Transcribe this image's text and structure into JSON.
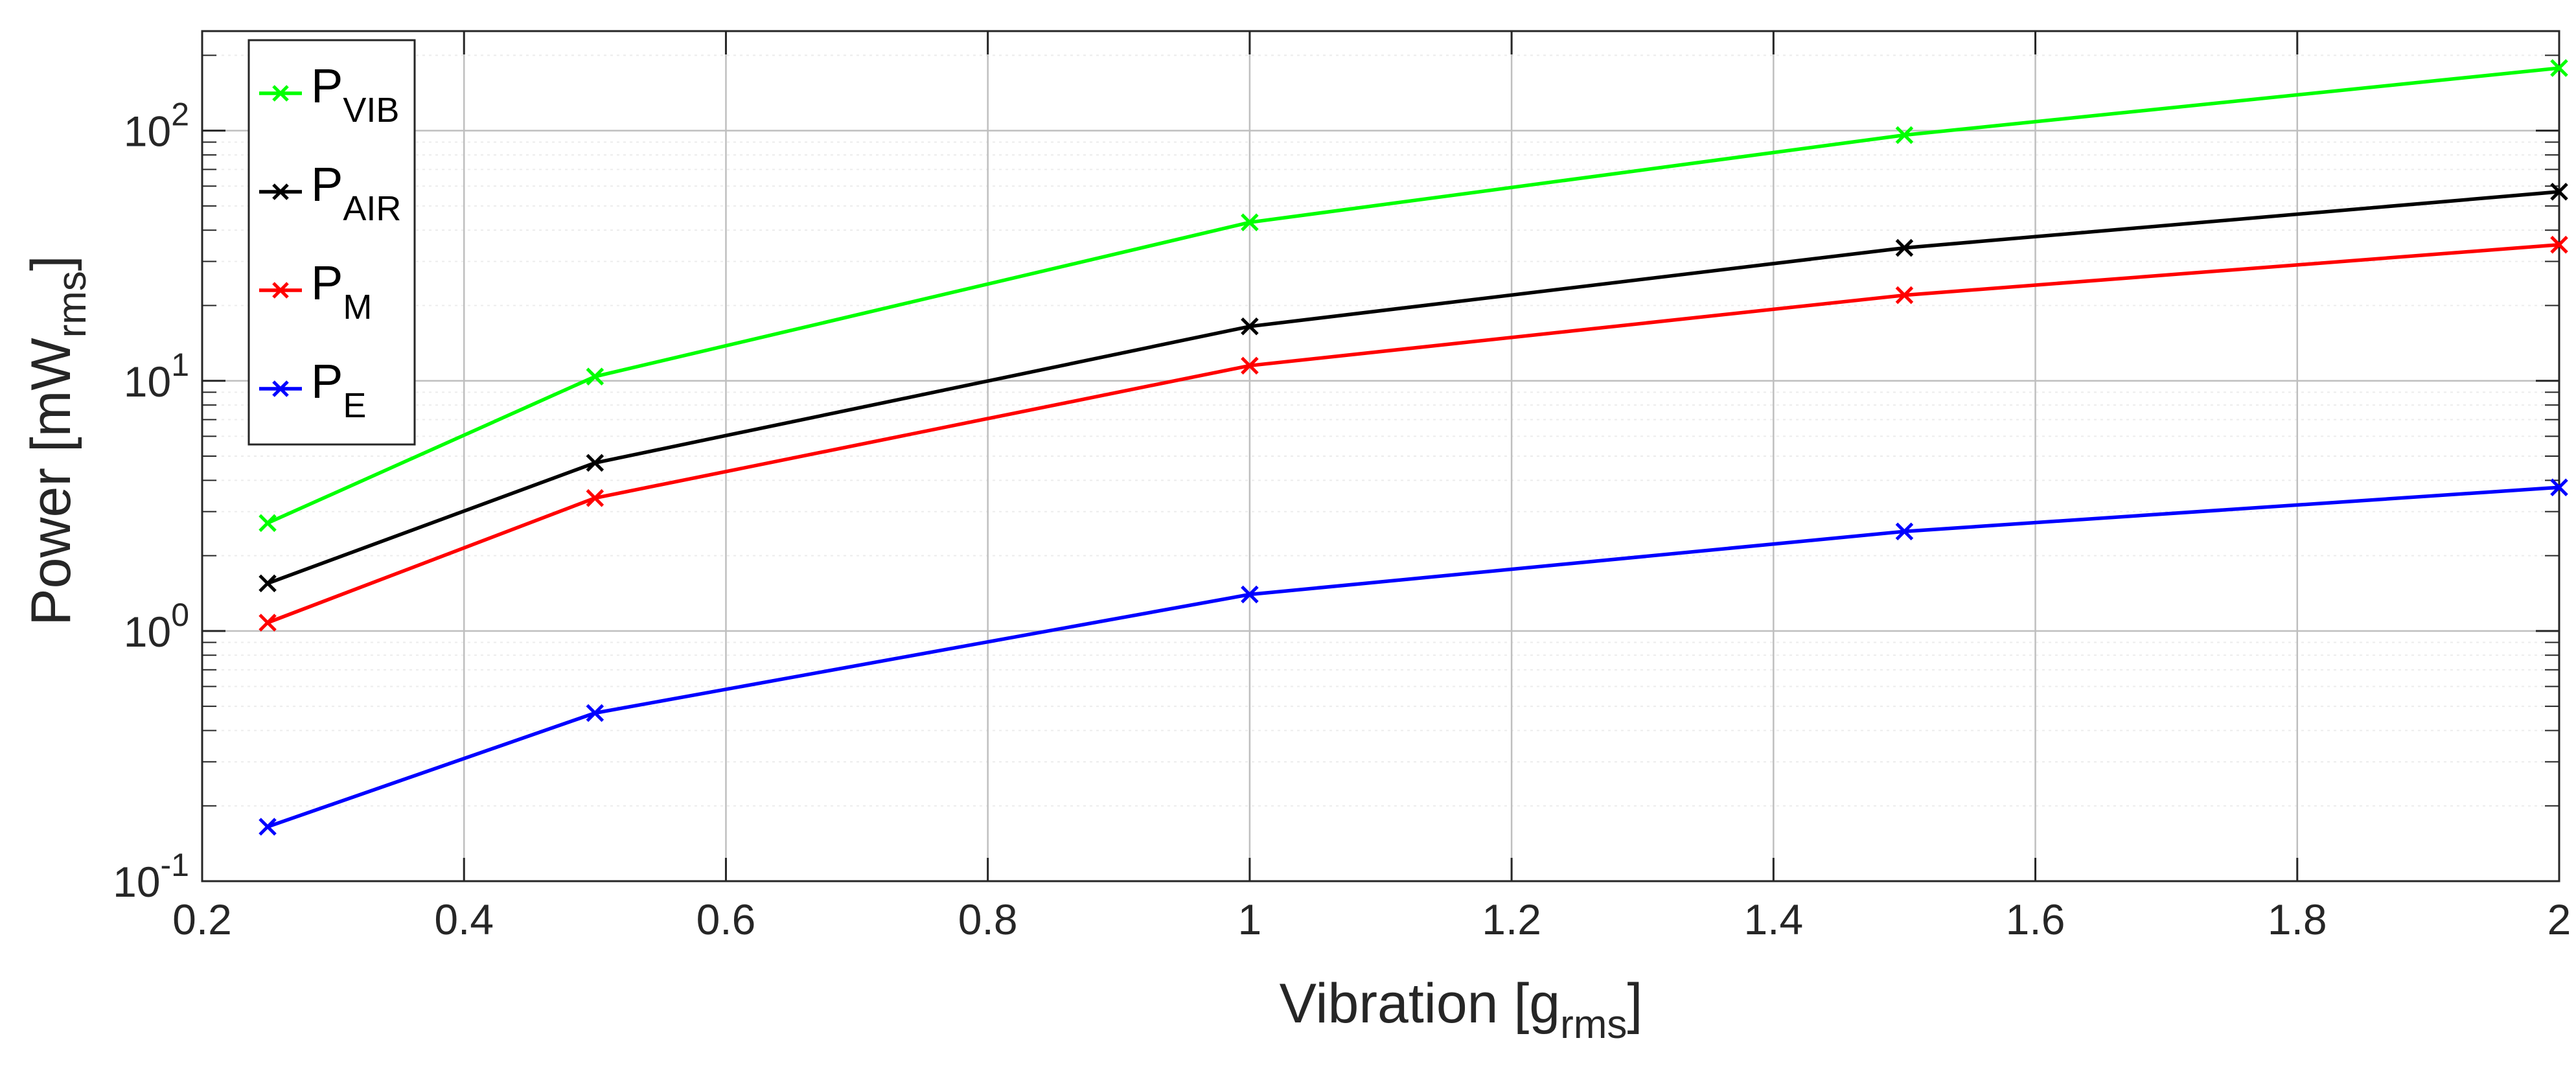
{
  "chart_data": {
    "type": "line",
    "title": "",
    "xlabel": {
      "main": "Vibration [g",
      "sub": "rms",
      "tail": "]"
    },
    "ylabel": {
      "main": "Power [mW",
      "sub": "rms",
      "tail": "]"
    },
    "xlim": [
      0.2,
      2.0
    ],
    "ylim": [
      0.1,
      250
    ],
    "yscale": "log",
    "grid": true,
    "minor_grid": true,
    "x_ticks": [
      "0.2",
      "0.4",
      "0.6",
      "0.8",
      "1",
      "1.2",
      "1.4",
      "1.6",
      "1.8",
      "2"
    ],
    "y_ticks": [
      {
        "base": "10",
        "exp": "-1"
      },
      {
        "base": "10",
        "exp": "0"
      },
      {
        "base": "10",
        "exp": "1"
      },
      {
        "base": "10",
        "exp": "2"
      }
    ],
    "legend_position": "top-left",
    "x": [
      0.25,
      0.5,
      1.0,
      1.5,
      2.0
    ],
    "series": [
      {
        "name": "P",
        "sub": "VIB",
        "color": "#00ff00",
        "values": [
          2.7,
          10.4,
          43,
          96,
          178
        ]
      },
      {
        "name": "P",
        "sub": "AIR",
        "color": "#000000",
        "values": [
          1.55,
          4.7,
          16.5,
          34,
          57
        ]
      },
      {
        "name": "P",
        "sub": "M",
        "color": "#ff0000",
        "values": [
          1.08,
          3.4,
          11.5,
          22,
          35
        ]
      },
      {
        "name": "P",
        "sub": "E",
        "color": "#0000ff",
        "values": [
          0.165,
          0.47,
          1.4,
          2.5,
          3.75
        ]
      }
    ]
  }
}
